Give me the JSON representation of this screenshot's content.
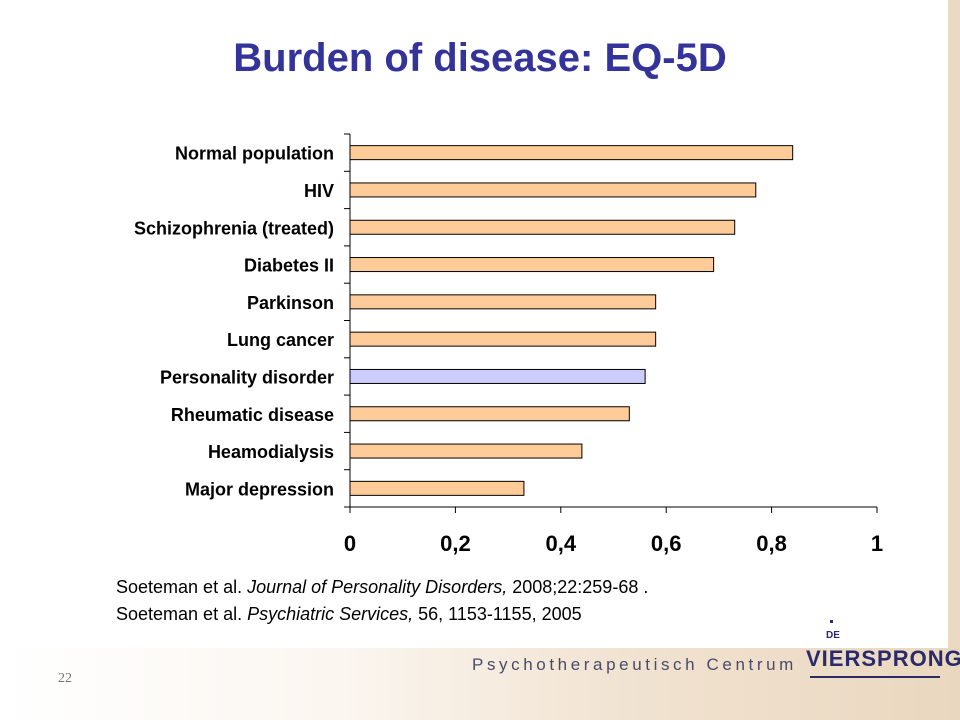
{
  "slide": {
    "title": "Burden of disease: EQ-5D",
    "page_number": "22",
    "institute": "Psychotherapeutisch Centrum",
    "logo": {
      "prefix": "DE",
      "name": "VIERSPRONG"
    },
    "citations": [
      {
        "prefix": "Soeteman et al. ",
        "journal": "Journal of Personality Disorders,",
        "suffix": " 2008;22:259-68 ."
      },
      {
        "prefix": "Soeteman et al. ",
        "journal": "Psychiatric Services,",
        "suffix": " 56, 1153-1155, 2005"
      }
    ]
  },
  "chart_data": {
    "type": "bar",
    "orientation": "horizontal",
    "title": "",
    "xlabel": "",
    "ylabel": "",
    "categories": [
      "Normal population",
      "HIV",
      "Schizophrenia (treated)",
      "Diabetes II",
      "Parkinson",
      "Lung cancer",
      "Personality disorder",
      "Rheumatic disease",
      "Heamodialysis",
      "Major depression"
    ],
    "values": [
      0.84,
      0.77,
      0.73,
      0.69,
      0.58,
      0.58,
      0.56,
      0.53,
      0.44,
      0.33
    ],
    "highlight_index": 6,
    "colors": {
      "default": "#ffcc99",
      "highlight": "#ccccff",
      "outline": "#000000"
    },
    "xlim": [
      0,
      1
    ],
    "xticks": [
      0,
      0.2,
      0.4,
      0.6,
      0.8,
      1
    ],
    "xtick_labels": [
      "0",
      "0,2",
      "0,4",
      "0,6",
      "0,8",
      "1"
    ],
    "grid": false,
    "legend": "none"
  }
}
